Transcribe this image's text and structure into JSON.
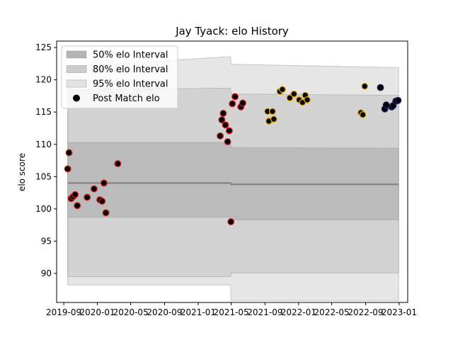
{
  "chart_data": {
    "type": "scatter",
    "title": "Jay Tyack: elo History",
    "xlabel": "",
    "ylabel": "elo score",
    "xlim": [
      "2019-08-06",
      "2023-02-01"
    ],
    "ylim": [
      85.5,
      126.0
    ],
    "yticks": [
      90,
      95,
      100,
      105,
      110,
      115,
      120,
      125
    ],
    "xticks": [
      "2019-09",
      "2020-01",
      "2020-05",
      "2020-09",
      "2021-01",
      "2021-05",
      "2021-09",
      "2022-01",
      "2022-05",
      "2022-09",
      "2023-01"
    ],
    "grid": false,
    "legend": {
      "placement": "top-left",
      "entries": [
        "50% elo Interval",
        "80% elo Interval",
        "95% elo Interval",
        "Post Match elo"
      ]
    },
    "colors": {
      "interval_50": "#b3b3b3",
      "interval_80": "#cccccc",
      "interval_95": "#e3e3e3",
      "line": "#808080",
      "point_fill_early": "#cc1f1f",
      "point_fill_late": "#e6ac1a",
      "point_fill_recent": "#1a1f5e",
      "point_edge": "#000000"
    },
    "intervals": {
      "x": [
        "2019-09-15",
        "2021-04-28",
        "2021-05-01",
        "2022-12-30"
      ],
      "center": [
        104.0,
        104.0,
        103.8,
        103.8
      ],
      "i50_upper": [
        110.3,
        110.3,
        109.5,
        109.4
      ],
      "i50_lower": [
        98.7,
        98.7,
        98.3,
        98.3
      ],
      "i80_upper": [
        118.5,
        118.7,
        117.8,
        117.6
      ],
      "i80_lower": [
        89.5,
        89.5,
        90.1,
        90.1
      ],
      "i95_upper": [
        122.0,
        123.6,
        122.4,
        121.9
      ],
      "i95_lower": [
        88.2,
        88.2,
        85.8,
        85.8
      ]
    },
    "series": [
      {
        "name": "Post Match elo",
        "x": [
          "2019-09-15",
          "2019-09-20",
          "2019-09-28",
          "2019-10-05",
          "2019-10-12",
          "2019-10-20",
          "2019-11-25",
          "2019-12-20",
          "2020-01-10",
          "2020-01-18",
          "2020-01-25",
          "2020-02-01",
          "2020-03-15",
          "2021-03-22",
          "2021-03-28",
          "2021-04-02",
          "2021-04-10",
          "2021-04-18",
          "2021-04-24",
          "2021-04-30",
          "2021-05-05",
          "2021-05-15",
          "2021-06-05",
          "2021-06-12",
          "2021-09-10",
          "2021-09-15",
          "2021-09-28",
          "2021-10-03",
          "2021-10-25",
          "2021-11-03",
          "2021-11-30",
          "2021-12-15",
          "2022-01-03",
          "2022-01-15",
          "2022-01-25",
          "2022-02-01",
          "2022-08-15",
          "2022-08-22",
          "2022-08-29",
          "2022-10-25",
          "2022-11-10",
          "2022-11-15",
          "2022-12-05",
          "2022-12-10",
          "2022-12-20",
          "2022-12-28"
        ],
        "y": [
          106.2,
          108.7,
          101.6,
          101.9,
          102.2,
          100.5,
          101.8,
          103.1,
          101.4,
          101.2,
          104.0,
          99.4,
          107.0,
          111.3,
          113.8,
          114.8,
          113.0,
          110.4,
          112.1,
          98.0,
          116.3,
          117.4,
          115.8,
          116.4,
          115.1,
          113.6,
          115.1,
          113.9,
          118.2,
          118.5,
          117.2,
          117.8,
          116.9,
          116.5,
          117.6,
          116.9,
          114.9,
          114.6,
          119.0,
          118.8,
          115.5,
          116.1,
          115.8,
          116.0,
          116.7,
          116.8
        ],
        "group": [
          0,
          0,
          0,
          0,
          0,
          0,
          0,
          0,
          0,
          0,
          0,
          0,
          0,
          0,
          0,
          0,
          0,
          0,
          0,
          0,
          0,
          0,
          0,
          0,
          1,
          1,
          1,
          1,
          1,
          1,
          1,
          1,
          1,
          1,
          1,
          1,
          1,
          1,
          1,
          2,
          2,
          2,
          2,
          2,
          2,
          2
        ]
      }
    ]
  }
}
